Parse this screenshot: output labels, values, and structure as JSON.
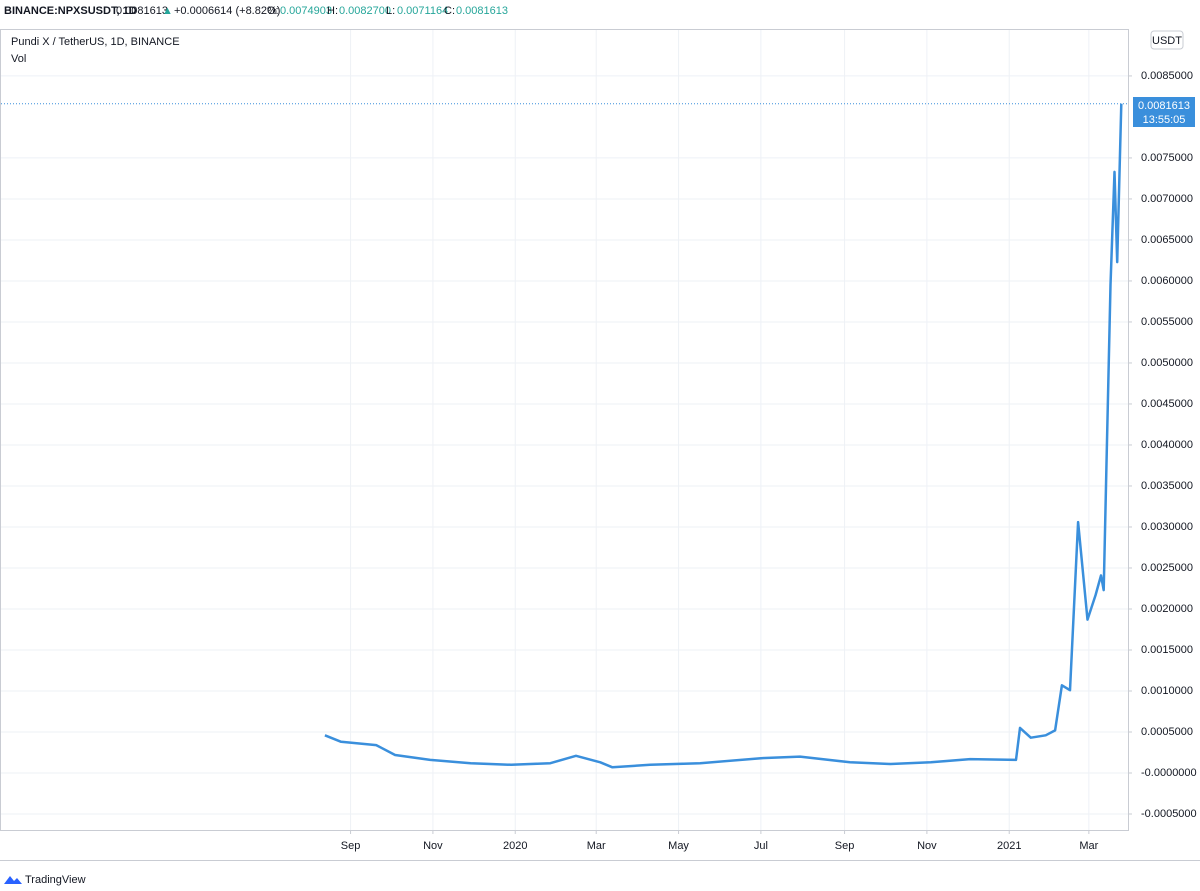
{
  "header": {
    "symbol": "BINANCE:NPXSUSDT, 1D",
    "price": "0.0081613",
    "change": "+0.0006614 (+8.82%)",
    "o_label": "O:",
    "o": "0.0074903",
    "h_label": "H:",
    "h": "0.0082700",
    "l_label": "L:",
    "l": "0.0071164",
    "c_label": "C:",
    "c": "0.0081613",
    "volume_legend": "Vol",
    "currency": "USDT",
    "last_price": "0.0081613",
    "countdown": "13:55:05",
    "brand": "TradingView"
  },
  "chart_data": {
    "type": "line",
    "x": [
      -19,
      -7,
      19,
      33,
      59,
      89,
      119,
      148,
      167,
      185,
      194,
      222,
      259,
      304,
      333,
      370,
      400,
      430,
      459,
      493,
      496,
      504,
      515,
      522,
      527,
      533,
      539,
      546,
      552,
      556,
      558,
      560,
      563,
      566,
      568,
      571
    ],
    "series": [
      {
        "name": "Pundi X / TetherUS, 1D, BINANCE",
        "color": "#3a8fdc",
        "values": [
          0.00046,
          0.00038,
          0.00034,
          0.00022,
          0.00016,
          0.00012,
          0.0001,
          0.00012,
          0.00021,
          0.00013,
          7e-05,
          0.0001,
          0.00012,
          0.00018,
          0.0002,
          0.00013,
          0.00011,
          0.00013,
          0.00017,
          0.00016,
          0.00055,
          0.00043,
          0.00046,
          0.00052,
          0.00107,
          0.00101,
          0.00306,
          0.00187,
          0.00217,
          0.00241,
          0.00223,
          0.00372,
          0.00595,
          0.00733,
          0.00623,
          0.0081613
        ]
      }
    ],
    "xlim": [
      -259,
      576
    ],
    "xticks": [
      {
        "value": 0,
        "label": "Sep"
      },
      {
        "value": 61,
        "label": "Nov"
      },
      {
        "value": 122,
        "label": "2020"
      },
      {
        "value": 182,
        "label": "Mar"
      },
      {
        "value": 243,
        "label": "May"
      },
      {
        "value": 304,
        "label": "Jul"
      },
      {
        "value": 366,
        "label": "Sep"
      },
      {
        "value": 427,
        "label": "Nov"
      },
      {
        "value": 488,
        "label": "2021"
      },
      {
        "value": 547,
        "label": "Mar"
      }
    ],
    "ylim": [
      -0.000695,
      0.00906
    ],
    "yticks": [
      {
        "value": -0.0005,
        "label": "-0.0005000"
      },
      {
        "value": 0,
        "label": "-0.0000000"
      },
      {
        "value": 0.0005,
        "label": "0.0005000"
      },
      {
        "value": 0.001,
        "label": "0.0010000"
      },
      {
        "value": 0.0015,
        "label": "0.0015000"
      },
      {
        "value": 0.002,
        "label": "0.0020000"
      },
      {
        "value": 0.0025,
        "label": "0.0025000"
      },
      {
        "value": 0.003,
        "label": "0.0030000"
      },
      {
        "value": 0.0035,
        "label": "0.0035000"
      },
      {
        "value": 0.004,
        "label": "0.0040000"
      },
      {
        "value": 0.0045,
        "label": "0.0045000"
      },
      {
        "value": 0.005,
        "label": "0.0050000"
      },
      {
        "value": 0.0055,
        "label": "0.0055000"
      },
      {
        "value": 0.006,
        "label": "0.0060000"
      },
      {
        "value": 0.0065,
        "label": "0.0065000"
      },
      {
        "value": 0.007,
        "label": "0.0070000"
      },
      {
        "value": 0.0075,
        "label": "0.0075000"
      },
      {
        "value": 0.0085,
        "label": "0.0085000"
      }
    ],
    "grid": true
  }
}
